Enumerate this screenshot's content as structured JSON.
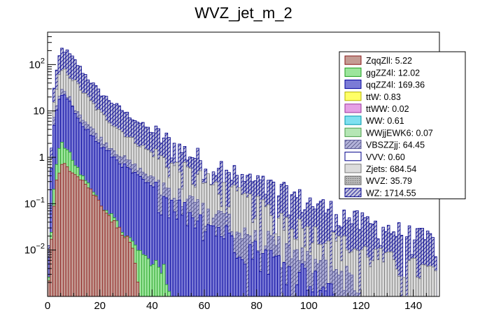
{
  "chart_data": {
    "type": "stacked-histogram",
    "title": "WVZ_jet_m_2",
    "xlabel": "",
    "ylabel": "",
    "xlim": [
      0,
      150
    ],
    "ylim": [
      0.001,
      500
    ],
    "y_scale": "log",
    "bin_width": 1,
    "x_ticks": [
      {
        "value": 0,
        "label": "0"
      },
      {
        "value": 20,
        "label": "20"
      },
      {
        "value": 40,
        "label": "40"
      },
      {
        "value": 60,
        "label": "60"
      },
      {
        "value": 80,
        "label": "80"
      },
      {
        "value": 100,
        "label": "100"
      },
      {
        "value": 120,
        "label": "120"
      },
      {
        "value": 140,
        "label": "140"
      }
    ],
    "y_ticks": [
      {
        "value": 0.01,
        "base": "10",
        "exp": "−2"
      },
      {
        "value": 0.1,
        "base": "10",
        "exp": "−1"
      },
      {
        "value": 1,
        "base": "1",
        "exp": ""
      },
      {
        "value": 10,
        "base": "10",
        "exp": ""
      },
      {
        "value": 100,
        "base": "10",
        "exp": "2"
      }
    ],
    "legend_position": "top-right",
    "series": [
      {
        "name": "ZqqZll",
        "total": "5.22",
        "color": "#c49c94",
        "edge": "#8b1a1a",
        "envelope": [
          [
            0,
            0.001
          ],
          [
            3,
            0.25
          ],
          [
            6,
            0.75
          ],
          [
            9,
            0.55
          ],
          [
            12,
            0.4
          ],
          [
            15,
            0.25
          ],
          [
            18,
            0.15
          ],
          [
            21,
            0.09
          ],
          [
            24,
            0.05
          ],
          [
            27,
            0.03
          ],
          [
            30,
            0.02
          ],
          [
            33,
            0.01
          ],
          [
            35,
            0.001
          ]
        ]
      },
      {
        "name": "ggZZ4l",
        "total": "12.02",
        "color": "#9ce59c",
        "edge": "#1f9e1f",
        "envelope": [
          [
            0,
            0.001
          ],
          [
            3,
            0.6
          ],
          [
            5,
            2.0
          ],
          [
            7,
            1.6
          ],
          [
            9,
            1.0
          ],
          [
            12,
            0.5
          ],
          [
            15,
            0.3
          ],
          [
            18,
            0.15
          ],
          [
            21,
            0.09
          ],
          [
            25,
            0.05
          ],
          [
            30,
            0.02
          ],
          [
            35,
            0.01
          ],
          [
            40,
            0.005
          ],
          [
            45,
            0.003
          ],
          [
            48,
            0.001
          ]
        ]
      },
      {
        "name": "qqZZ4l",
        "total": "169.36",
        "color": "#7b7bd6",
        "edge": "#00009c",
        "envelope": [
          [
            0,
            0.001
          ],
          [
            2,
            4
          ],
          [
            5,
            22
          ],
          [
            7,
            20
          ],
          [
            10,
            10
          ],
          [
            15,
            4
          ],
          [
            20,
            1.8
          ],
          [
            30,
            0.6
          ],
          [
            40,
            0.22
          ],
          [
            50,
            0.09
          ],
          [
            60,
            0.04
          ],
          [
            70,
            0.02
          ],
          [
            85,
            0.007
          ],
          [
            100,
            0.003
          ],
          [
            110,
            0.001
          ]
        ]
      },
      {
        "name": "ttW",
        "total": "0.83",
        "color": "#ffff66",
        "edge": "#b3b300",
        "envelope": []
      },
      {
        "name": "ttWW",
        "total": "0.02",
        "color": "#e5a0e5",
        "edge": "#993399",
        "envelope": []
      },
      {
        "name": "WW",
        "total": "0.61",
        "color": "#7fe0f0",
        "edge": "#0099aa",
        "envelope": []
      },
      {
        "name": "WWjjEWK6",
        "total": "0.07",
        "color": "#b5e6b5",
        "edge": "#4a9e4a",
        "envelope": []
      },
      {
        "name": "VBSZZjj",
        "total": "64.45",
        "color": "#b3b3d9",
        "edge": "#555599",
        "envelope": [
          [
            0,
            0.001
          ],
          [
            2,
            5
          ],
          [
            5,
            28
          ],
          [
            7,
            25
          ],
          [
            10,
            13
          ],
          [
            15,
            5.5
          ],
          [
            20,
            2.6
          ],
          [
            30,
            0.9
          ],
          [
            40,
            0.35
          ],
          [
            50,
            0.15
          ],
          [
            60,
            0.07
          ],
          [
            70,
            0.035
          ],
          [
            85,
            0.015
          ],
          [
            100,
            0.006
          ],
          [
            115,
            0.003
          ],
          [
            120,
            0.001
          ]
        ]
      },
      {
        "name": "VVV",
        "total": "0.60",
        "color": "#ffffff",
        "edge": "#00008b",
        "envelope": []
      },
      {
        "name": "Zjets",
        "total": "684.54",
        "color": "#dcdcdc",
        "edge": "#777777",
        "envelope": [
          [
            0,
            0.001
          ],
          [
            2,
            10
          ],
          [
            5,
            75
          ],
          [
            7,
            70
          ],
          [
            10,
            45
          ],
          [
            15,
            20
          ],
          [
            20,
            9
          ],
          [
            30,
            3
          ],
          [
            40,
            1.2
          ],
          [
            50,
            0.55
          ],
          [
            60,
            0.3
          ],
          [
            70,
            0.17
          ],
          [
            80,
            0.09
          ],
          [
            90,
            0.05
          ],
          [
            100,
            0.025
          ],
          [
            115,
            0.012
          ],
          [
            130,
            0.006
          ],
          [
            150,
            0.003
          ]
        ]
      },
      {
        "name": "WVZ",
        "total": "35.79",
        "color": "#b8b8b8",
        "edge": "#666666",
        "envelope": []
      },
      {
        "name": "WZ",
        "total": "1714.55",
        "color": "#c4c4de",
        "edge": "#00008b",
        "envelope": [
          [
            0,
            0.001
          ],
          [
            2,
            20
          ],
          [
            5,
            220
          ],
          [
            7,
            200
          ],
          [
            10,
            130
          ],
          [
            15,
            55
          ],
          [
            20,
            25
          ],
          [
            30,
            9
          ],
          [
            40,
            3.6
          ],
          [
            50,
            1.6
          ],
          [
            60,
            0.85
          ],
          [
            70,
            0.45
          ],
          [
            80,
            0.28
          ],
          [
            90,
            0.18
          ],
          [
            100,
            0.11
          ],
          [
            110,
            0.07
          ],
          [
            120,
            0.04
          ],
          [
            130,
            0.03
          ],
          [
            140,
            0.02
          ],
          [
            150,
            0.015
          ]
        ]
      }
    ]
  }
}
